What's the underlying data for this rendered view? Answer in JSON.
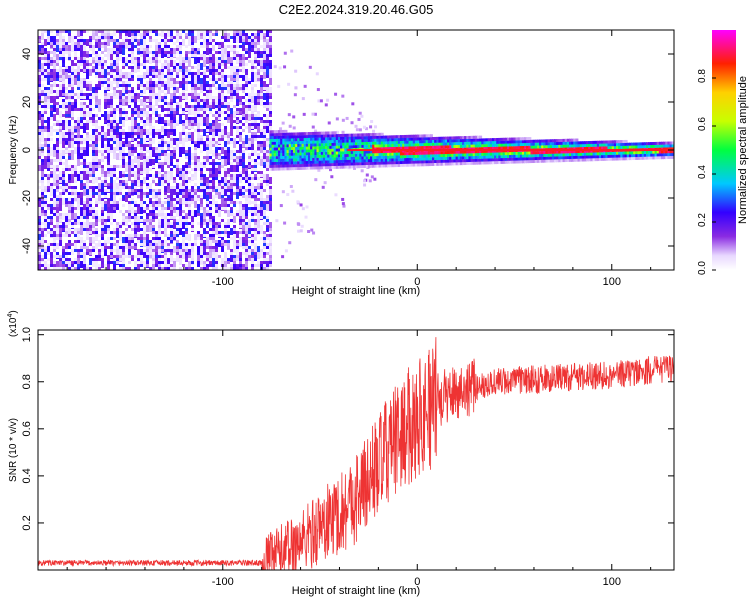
{
  "title": "C2E2.2024.319.20.46.G05",
  "chart_data": [
    {
      "type": "heatmap",
      "xlabel": "Height of straight line (km)",
      "ylabel": "Frequency (Hz)",
      "xlim": [
        -195,
        132
      ],
      "ylim": [
        -50,
        50
      ],
      "xticks": [
        -100,
        0,
        100
      ],
      "xtick_labels": [
        "-100",
        "0",
        "100"
      ],
      "yticks": [
        -40,
        -20,
        0,
        20,
        40
      ],
      "ytick_labels": [
        "-40",
        "-20",
        "0",
        "20",
        "40"
      ],
      "colorbar": {
        "label": "Normalized spectral amplitude",
        "range": [
          0,
          1
        ],
        "ticks": [
          0,
          0.2,
          0.4,
          0.6,
          0.8
        ],
        "tick_labels": [
          "0.0",
          "0.2",
          "0.4",
          "0.6",
          "0.8"
        ],
        "colormap": "rainbow (white, violet, blue, cyan, green, yellow, red, magenta)"
      },
      "regions": [
        {
          "x": [
            -195,
            -76
          ],
          "description_values": {
            "frequency_range": [
              -50,
              50
            ],
            "amplitude_range": [
              0.0,
              0.15
            ]
          }
        },
        {
          "x": [
            -76,
            132
          ],
          "description_values": {
            "line_frequency": 0,
            "amplitude_peak": 0.95
          }
        }
      ],
      "grid": false
    },
    {
      "type": "line",
      "xlabel": "Height of straight line (km)",
      "ylabel": "SNR (10 * v/v)",
      "y_multiplier_label": "(x10",
      "y_multiplier_exp": "4",
      "y_multiplier_close": ")",
      "xlim": [
        -195,
        132
      ],
      "ylim": [
        0,
        1.02
      ],
      "xticks": [
        -100,
        0,
        100
      ],
      "xtick_labels": [
        "-100",
        "0",
        "100"
      ],
      "yticks": [
        0.2,
        0.4,
        0.6,
        0.8,
        1.0
      ],
      "ytick_labels": [
        "0.2",
        "0.4",
        "0.6",
        "0.8",
        "1.0"
      ],
      "color": "#ee3333",
      "trend": {
        "x": [
          -195,
          -80,
          -72,
          -60,
          -50,
          -40,
          -30,
          -20,
          -10,
          0,
          10,
          20,
          30,
          40,
          60,
          80,
          100,
          120,
          132
        ],
        "y": [
          0.03,
          0.03,
          0.07,
          0.12,
          0.18,
          0.24,
          0.32,
          0.45,
          0.56,
          0.65,
          0.72,
          0.76,
          0.78,
          0.8,
          0.81,
          0.82,
          0.83,
          0.85,
          0.86
        ]
      },
      "grid": false
    }
  ]
}
